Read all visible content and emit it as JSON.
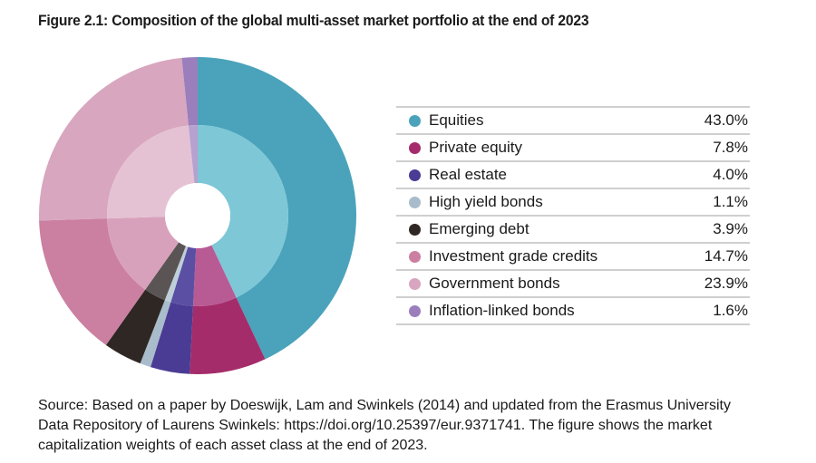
{
  "title": "Figure 2.1: Composition of the global multi-asset market portfolio at the end of 2023",
  "source": "Source: Based on a paper by Doeswijk, Lam and Swinkels (2014) and updated from the Erasmus University Data Repository of Laurens Swinkels: https://doi.org/10.25397/eur.9371741. The figure shows the market capitalization weights of each asset class at the end of 2023.",
  "chart_data": {
    "type": "pie",
    "title": "Figure 2.1: Composition of the global multi-asset market portfolio at the end of 2023",
    "unit": "%",
    "series": [
      {
        "name": "Equities",
        "value": 43.0,
        "label": "43.0%",
        "color": "#4aa3bb",
        "inner_color": "#7dc7d6"
      },
      {
        "name": "Private equity",
        "value": 7.8,
        "label": "7.8%",
        "color": "#a52c6a",
        "inner_color": "#b85a94"
      },
      {
        "name": "Real estate",
        "value": 4.0,
        "label": "4.0%",
        "color": "#4a3b94",
        "inner_color": "#5b4fa3"
      },
      {
        "name": "High yield bonds",
        "value": 1.1,
        "label": "1.1%",
        "color": "#a9bccb",
        "inner_color": "#bfcfda"
      },
      {
        "name": "Emerging debt",
        "value": 3.9,
        "label": "3.9%",
        "color": "#2e2723",
        "inner_color": "#5a5554"
      },
      {
        "name": "Investment grade credits",
        "value": 14.7,
        "label": "14.7%",
        "color": "#cb7fa1",
        "inner_color": "#d8a1bb"
      },
      {
        "name": "Government bonds",
        "value": 23.9,
        "label": "23.9%",
        "color": "#d8a6bf",
        "inner_color": "#e4c2d4"
      },
      {
        "name": "Inflation-linked bonds",
        "value": 1.6,
        "label": "1.6%",
        "color": "#9b7fbd",
        "inner_color": "#b6a1d0"
      }
    ]
  }
}
